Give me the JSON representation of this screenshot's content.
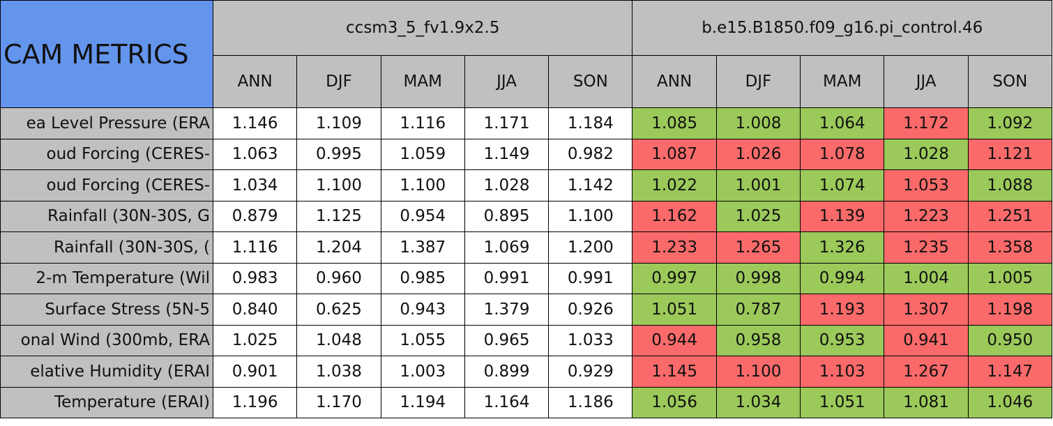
{
  "header": {
    "title": "CAM METRICS",
    "groups": [
      "ccsm3_5_fv1.9x2.5",
      "b.e15.B1850.f09_g16.pi_control.46"
    ],
    "seasons": [
      [
        "ANN",
        "DJF",
        "MAM",
        "JJA",
        "SON"
      ],
      [
        "ANN",
        "DJF",
        "MAM",
        "JJA",
        "SON"
      ]
    ]
  },
  "table": {
    "rows": [
      {
        "label": "ea Level Pressure (ERA",
        "values": [
          "1.146",
          "1.109",
          "1.116",
          "1.171",
          "1.184",
          "1.085",
          "1.008",
          "1.064",
          "1.172",
          "1.092"
        ],
        "colors": [
          "#ffffff",
          "#ffffff",
          "#ffffff",
          "#ffffff",
          "#ffffff",
          "#9bc95a",
          "#9bc95a",
          "#9bc95a",
          "#fa6a6a",
          "#9bc95a"
        ]
      },
      {
        "label": "oud Forcing (CERES-",
        "values": [
          "1.063",
          "0.995",
          "1.059",
          "1.149",
          "0.982",
          "1.087",
          "1.026",
          "1.078",
          "1.028",
          "1.121"
        ],
        "colors": [
          "#ffffff",
          "#ffffff",
          "#ffffff",
          "#ffffff",
          "#ffffff",
          "#fa6a6a",
          "#fa6a6a",
          "#fa6a6a",
          "#9bc95a",
          "#fa6a6a"
        ]
      },
      {
        "label": "oud Forcing (CERES-",
        "values": [
          "1.034",
          "1.100",
          "1.100",
          "1.028",
          "1.142",
          "1.022",
          "1.001",
          "1.074",
          "1.053",
          "1.088"
        ],
        "colors": [
          "#ffffff",
          "#ffffff",
          "#ffffff",
          "#ffffff",
          "#ffffff",
          "#9bc95a",
          "#9bc95a",
          "#9bc95a",
          "#fa6a6a",
          "#9bc95a"
        ]
      },
      {
        "label": "Rainfall (30N-30S, G",
        "values": [
          "0.879",
          "1.125",
          "0.954",
          "0.895",
          "1.100",
          "1.162",
          "1.025",
          "1.139",
          "1.223",
          "1.251"
        ],
        "colors": [
          "#ffffff",
          "#ffffff",
          "#ffffff",
          "#ffffff",
          "#ffffff",
          "#fa6a6a",
          "#9bc95a",
          "#fa6a6a",
          "#fa6a6a",
          "#fa6a6a"
        ]
      },
      {
        "label": "Rainfall (30N-30S, (",
        "values": [
          "1.116",
          "1.204",
          "1.387",
          "1.069",
          "1.200",
          "1.233",
          "1.265",
          "1.326",
          "1.235",
          "1.358"
        ],
        "colors": [
          "#ffffff",
          "#ffffff",
          "#ffffff",
          "#ffffff",
          "#ffffff",
          "#fa6a6a",
          "#fa6a6a",
          "#9bc95a",
          "#fa6a6a",
          "#fa6a6a"
        ]
      },
      {
        "label": "2-m Temperature (Wil",
        "values": [
          "0.983",
          "0.960",
          "0.985",
          "0.991",
          "0.991",
          "0.997",
          "0.998",
          "0.994",
          "1.004",
          "1.005"
        ],
        "colors": [
          "#ffffff",
          "#ffffff",
          "#ffffff",
          "#ffffff",
          "#ffffff",
          "#9bc95a",
          "#9bc95a",
          "#9bc95a",
          "#9bc95a",
          "#9bc95a"
        ]
      },
      {
        "label": "Surface Stress (5N-5",
        "values": [
          "0.840",
          "0.625",
          "0.943",
          "1.379",
          "0.926",
          "1.051",
          "0.787",
          "1.193",
          "1.307",
          "1.198"
        ],
        "colors": [
          "#ffffff",
          "#ffffff",
          "#ffffff",
          "#ffffff",
          "#ffffff",
          "#9bc95a",
          "#9bc95a",
          "#fa6a6a",
          "#fa6a6a",
          "#fa6a6a"
        ]
      },
      {
        "label": "onal Wind (300mb, ERA",
        "values": [
          "1.025",
          "1.048",
          "1.055",
          "0.965",
          "1.033",
          "0.944",
          "0.958",
          "0.953",
          "0.941",
          "0.950"
        ],
        "colors": [
          "#ffffff",
          "#ffffff",
          "#ffffff",
          "#ffffff",
          "#ffffff",
          "#fa6a6a",
          "#9bc95a",
          "#9bc95a",
          "#fa6a6a",
          "#9bc95a"
        ]
      },
      {
        "label": "elative Humidity (ERAI",
        "values": [
          "0.901",
          "1.038",
          "1.003",
          "0.899",
          "0.929",
          "1.145",
          "1.100",
          "1.103",
          "1.267",
          "1.147"
        ],
        "colors": [
          "#ffffff",
          "#ffffff",
          "#ffffff",
          "#ffffff",
          "#ffffff",
          "#fa6a6a",
          "#fa6a6a",
          "#fa6a6a",
          "#fa6a6a",
          "#fa6a6a"
        ]
      },
      {
        "label": "Temperature (ERAI)",
        "values": [
          "1.196",
          "1.170",
          "1.194",
          "1.164",
          "1.186",
          "1.056",
          "1.034",
          "1.051",
          "1.081",
          "1.046"
        ],
        "colors": [
          "#ffffff",
          "#ffffff",
          "#ffffff",
          "#ffffff",
          "#ffffff",
          "#9bc95a",
          "#9bc95a",
          "#9bc95a",
          "#9bc95a",
          "#9bc95a"
        ]
      }
    ]
  }
}
